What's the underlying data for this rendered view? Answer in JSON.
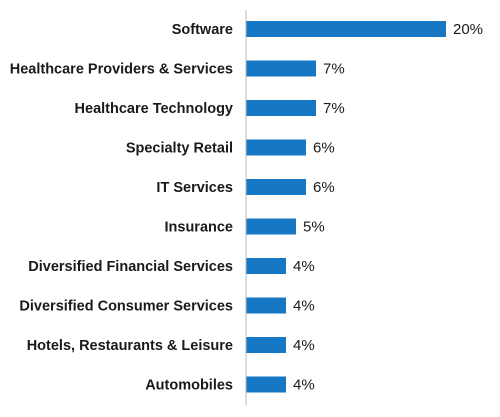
{
  "chart_data": {
    "type": "bar",
    "orientation": "horizontal",
    "categories": [
      "Software",
      "Healthcare Providers & Services",
      "Healthcare Technology",
      "Specialty Retail",
      "IT Services",
      "Insurance",
      "Diversified Financial Services",
      "Diversified Consumer Services",
      "Hotels, Restaurants & Leisure",
      "Automobiles"
    ],
    "values": [
      20,
      7,
      7,
      6,
      6,
      5,
      4,
      4,
      4,
      4
    ],
    "value_labels": [
      "20%",
      "7%",
      "7%",
      "6%",
      "6%",
      "5%",
      "4%",
      "4%",
      "4%",
      "4%"
    ],
    "xlim": [
      0,
      20
    ],
    "grid": false,
    "bar_color": "#1677c5",
    "axis_color": "#b8b8b8"
  }
}
